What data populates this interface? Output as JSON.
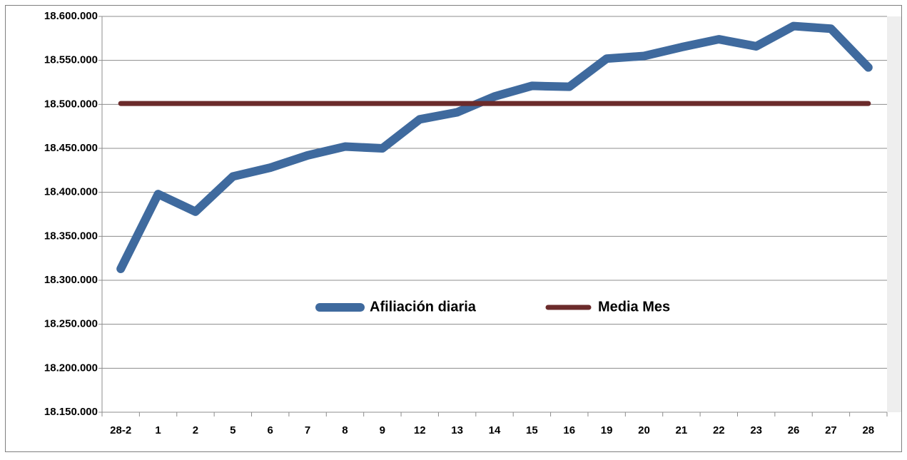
{
  "chart_data": {
    "type": "line",
    "categories": [
      "28-2",
      "1",
      "2",
      "5",
      "6",
      "7",
      "8",
      "9",
      "12",
      "13",
      "14",
      "15",
      "16",
      "19",
      "20",
      "21",
      "22",
      "23",
      "26",
      "27",
      "28"
    ],
    "series": [
      {
        "name": "Afiliación diaria",
        "color": "#3f6a9e",
        "values": [
          18313000,
          18398000,
          18378000,
          18418000,
          18428000,
          18442000,
          18452000,
          18450000,
          18483000,
          18491000,
          18509000,
          18521000,
          18520000,
          18552000,
          18555000,
          18565000,
          18574000,
          18566000,
          18589000,
          18586000,
          18542000
        ]
      },
      {
        "name": "Media Mes",
        "color": "#6b2b2b",
        "values": [
          18501000,
          18501000,
          18501000,
          18501000,
          18501000,
          18501000,
          18501000,
          18501000,
          18501000,
          18501000,
          18501000,
          18501000,
          18501000,
          18501000,
          18501000,
          18501000,
          18501000,
          18501000,
          18501000,
          18501000,
          18501000
        ]
      }
    ],
    "ylim": [
      18150000,
      18600000
    ],
    "yticks": [
      {
        "value": 18150000,
        "label": "18.150.000"
      },
      {
        "value": 18200000,
        "label": "18.200.000"
      },
      {
        "value": 18250000,
        "label": "18.250.000"
      },
      {
        "value": 18300000,
        "label": "18.300.000"
      },
      {
        "value": 18350000,
        "label": "18.350.000"
      },
      {
        "value": 18400000,
        "label": "18.400.000"
      },
      {
        "value": 18450000,
        "label": "18.450.000"
      },
      {
        "value": 18500000,
        "label": "18.500.000"
      },
      {
        "value": 18550000,
        "label": "18.550.000"
      },
      {
        "value": 18600000,
        "label": "18.600.000"
      }
    ],
    "grid": true,
    "legend": "center"
  }
}
